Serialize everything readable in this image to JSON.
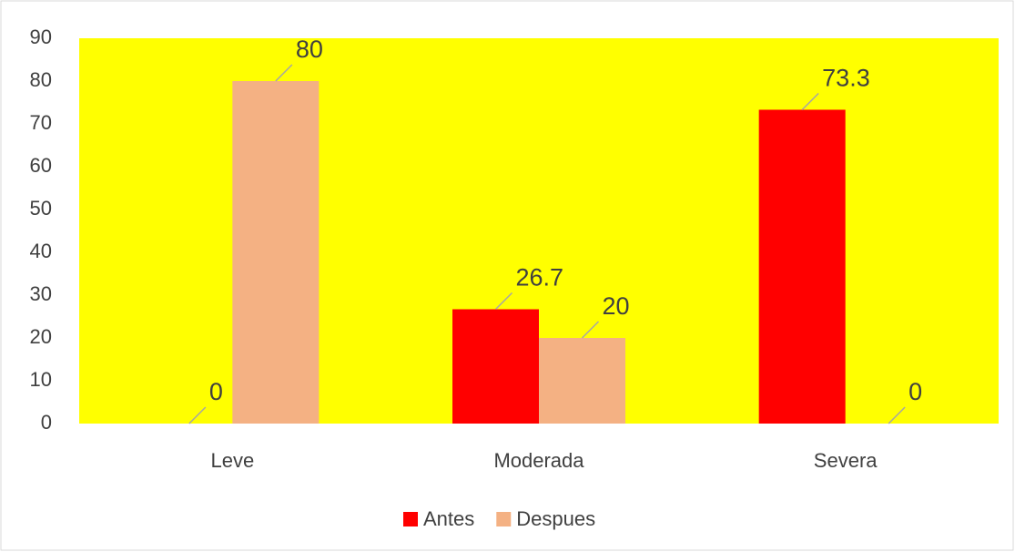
{
  "chart_data": {
    "type": "bar",
    "categories": [
      "Leve",
      "Moderada",
      "Severa"
    ],
    "series": [
      {
        "name": "Antes",
        "color": "#ff0000",
        "values": [
          0,
          26.7,
          73.3
        ]
      },
      {
        "name": "Despues",
        "color": "#f4b183",
        "values": [
          80,
          20,
          0
        ]
      }
    ],
    "ylim": [
      0,
      90
    ],
    "yticks": [
      0,
      10,
      20,
      30,
      40,
      50,
      60,
      70,
      80,
      90
    ],
    "grid": false,
    "plot_background": "#ffff00",
    "legend": "bottom"
  }
}
